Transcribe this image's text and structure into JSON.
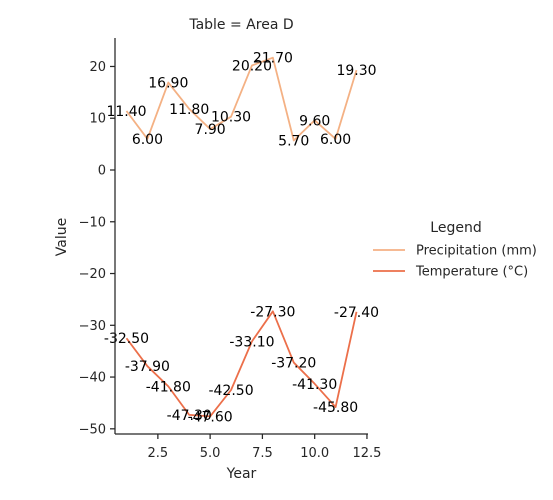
{
  "chart_data": {
    "type": "line",
    "title": "Table = Area D",
    "xlabel": "Year",
    "ylabel": "Value",
    "xlim": [
      0.45,
      12.55
    ],
    "ylim": [
      -51,
      25.5
    ],
    "x_ticks": [
      2.5,
      5.0,
      7.5,
      10.0,
      12.5
    ],
    "x_tick_labels": [
      "2.5",
      "5.0",
      "7.5",
      "10.0",
      "12.5"
    ],
    "y_ticks": [
      -50,
      -40,
      -30,
      -20,
      -10,
      0,
      10,
      20
    ],
    "y_tick_labels": [
      "−50",
      "−40",
      "−30",
      "−20",
      "−10",
      "0",
      "10",
      "20"
    ],
    "legend": {
      "title": "Legend",
      "position": "right"
    },
    "grid": false,
    "x": [
      1,
      2,
      3,
      4,
      5,
      6,
      7,
      8,
      9,
      10,
      11,
      12
    ],
    "series": [
      {
        "name": "Precipitation (mm)",
        "color": "#f4b184",
        "values": [
          11.4,
          6.0,
          16.9,
          11.8,
          7.9,
          10.3,
          20.2,
          21.7,
          5.7,
          9.6,
          6.0,
          19.3
        ],
        "labels": [
          "11.40",
          "6.00",
          "16.90",
          "11.80",
          "7.90",
          "10.30",
          "20.20",
          "21.70",
          "5.70",
          "9.60",
          "6.00",
          "19.30"
        ]
      },
      {
        "name": "Temperature (°C)",
        "color": "#ec6f4a",
        "values": [
          -32.5,
          -37.9,
          -41.8,
          -47.3,
          -47.6,
          -42.5,
          -33.1,
          -27.3,
          -37.2,
          -41.3,
          -45.8,
          -27.4
        ],
        "labels": [
          "-32.50",
          "-37.90",
          "-41.80",
          "-47.30",
          "-47.60",
          "-42.50",
          "-33.10",
          "-27.30",
          "-37.20",
          "-41.30",
          "-45.80",
          "-27.40"
        ]
      }
    ]
  }
}
